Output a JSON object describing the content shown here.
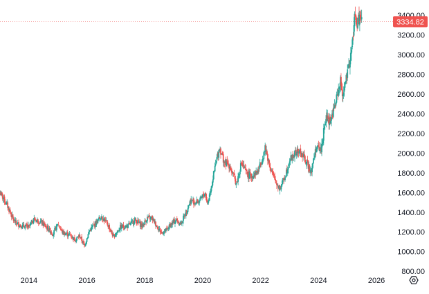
{
  "chart_data": {
    "type": "candlestick",
    "x_tick_labels": [
      "2014",
      "2016",
      "2018",
      "2020",
      "2022",
      "2024",
      "2026"
    ],
    "y_tick_labels": [
      "800.00",
      "1000.00",
      "1200.00",
      "1400.00",
      "1600.00",
      "1800.00",
      "2000.00",
      "2200.00",
      "2400.00",
      "2600.00",
      "2800.00",
      "3000.00",
      "3200.00",
      "3400.00"
    ],
    "y_ticks": [
      800,
      1000,
      1200,
      1400,
      1600,
      1800,
      2000,
      2200,
      2400,
      2600,
      2800,
      3000,
      3200,
      3400
    ],
    "ylim": [
      780,
      3520
    ],
    "xlim": [
      "2013-01",
      "2026-07"
    ],
    "grid": false,
    "last_price": 3334.82,
    "last_price_label": "3334.82",
    "colors": {
      "up": "#26a69a",
      "down": "#ef5350",
      "price_line": "#ef5350",
      "axis_text": "#131722"
    },
    "settings_icon": "gear-hexagon-icon",
    "series": [
      {
        "values": [
          [
            "2013-01",
            1600
          ],
          [
            "2013-04",
            1470
          ],
          [
            "2013-07",
            1300
          ],
          [
            "2013-10",
            1260
          ],
          [
            "2014-01",
            1250
          ],
          [
            "2014-03",
            1330
          ],
          [
            "2014-06",
            1300
          ],
          [
            "2014-09",
            1230
          ],
          [
            "2014-11",
            1180
          ],
          [
            "2015-01",
            1280
          ],
          [
            "2015-03",
            1190
          ],
          [
            "2015-06",
            1170
          ],
          [
            "2015-08",
            1120
          ],
          [
            "2015-10",
            1160
          ],
          [
            "2015-12",
            1060
          ],
          [
            "2016-02",
            1210
          ],
          [
            "2016-04",
            1270
          ],
          [
            "2016-07",
            1360
          ],
          [
            "2016-10",
            1260
          ],
          [
            "2016-12",
            1150
          ],
          [
            "2017-03",
            1250
          ],
          [
            "2017-06",
            1260
          ],
          [
            "2017-09",
            1320
          ],
          [
            "2017-12",
            1260
          ],
          [
            "2018-02",
            1340
          ],
          [
            "2018-04",
            1340
          ],
          [
            "2018-06",
            1260
          ],
          [
            "2018-08",
            1190
          ],
          [
            "2018-10",
            1220
          ],
          [
            "2018-12",
            1280
          ],
          [
            "2019-02",
            1320
          ],
          [
            "2019-04",
            1280
          ],
          [
            "2019-06",
            1400
          ],
          [
            "2019-08",
            1520
          ],
          [
            "2019-10",
            1500
          ],
          [
            "2019-12",
            1520
          ],
          [
            "2020-02",
            1600
          ],
          [
            "2020-03",
            1480
          ],
          [
            "2020-05",
            1720
          ],
          [
            "2020-07",
            1960
          ],
          [
            "2020-08",
            2060
          ],
          [
            "2020-10",
            1900
          ],
          [
            "2020-12",
            1880
          ],
          [
            "2021-03",
            1690
          ],
          [
            "2021-05",
            1900
          ],
          [
            "2021-07",
            1800
          ],
          [
            "2021-09",
            1760
          ],
          [
            "2021-12",
            1820
          ],
          [
            "2022-03",
            2050
          ],
          [
            "2022-05",
            1850
          ],
          [
            "2022-07",
            1720
          ],
          [
            "2022-09",
            1640
          ],
          [
            "2022-11",
            1760
          ],
          [
            "2023-01",
            1930
          ],
          [
            "2023-03",
            1990
          ],
          [
            "2023-05",
            2020
          ],
          [
            "2023-07",
            1950
          ],
          [
            "2023-10",
            1820
          ],
          [
            "2023-12",
            2060
          ],
          [
            "2024-02",
            2030
          ],
          [
            "2024-04",
            2350
          ],
          [
            "2024-06",
            2330
          ],
          [
            "2024-08",
            2500
          ],
          [
            "2024-10",
            2730
          ],
          [
            "2024-11",
            2600
          ],
          [
            "2025-01",
            2800
          ],
          [
            "2025-02",
            2950
          ],
          [
            "2025-03",
            3100
          ],
          [
            "2025-04",
            3400
          ],
          [
            "2025-05",
            3300
          ],
          [
            "2025-06",
            3380
          ],
          [
            "2025-07",
            3334.82
          ]
        ]
      }
    ]
  }
}
